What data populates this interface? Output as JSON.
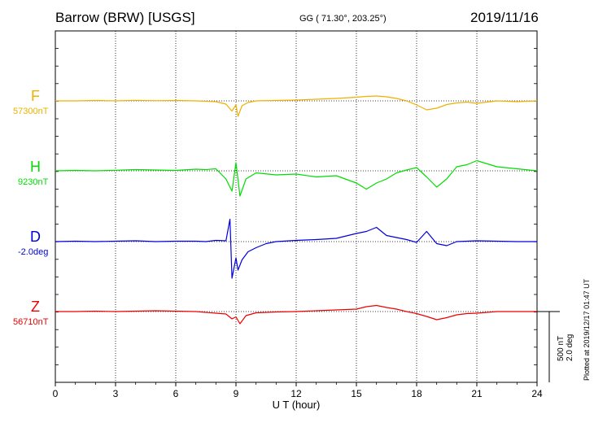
{
  "header": {
    "station": "Barrow (BRW)  [USGS]",
    "coords": "GG ( 71.30°, 203.25°)",
    "date": "2019/11/16"
  },
  "footnote": "Plotted at 2019/12/17 01:47 UT",
  "chart_data": {
    "type": "line",
    "xlabel": "U T (hour)",
    "xlim": [
      0,
      24
    ],
    "xticks": [
      "0",
      "3",
      "6",
      "9",
      "12",
      "15",
      "18",
      "21",
      "24"
    ],
    "scale_label": [
      "500 nT",
      "2.0 deg"
    ],
    "grid": true,
    "series": [
      {
        "name": "F",
        "baseline_label": "57300nT",
        "color": "#f0b000",
        "x": [
          0,
          1,
          2,
          3,
          4,
          5,
          6,
          7,
          7.5,
          8,
          8.5,
          8.8,
          9,
          9.1,
          9.3,
          9.6,
          10,
          11,
          12,
          13,
          14,
          15,
          15.5,
          16,
          16.5,
          17,
          17.5,
          18,
          18.5,
          19,
          19.5,
          20,
          20.5,
          21,
          22,
          23,
          24
        ],
        "values": [
          0,
          0,
          10,
          0,
          15,
          5,
          10,
          0,
          -10,
          -20,
          -80,
          -250,
          -100,
          -380,
          -120,
          -40,
          0,
          10,
          20,
          40,
          60,
          90,
          110,
          120,
          100,
          60,
          0,
          -100,
          -220,
          -180,
          -90,
          -50,
          -30,
          -60,
          0,
          -20,
          0
        ]
      },
      {
        "name": "H",
        "baseline_label": "9230nT",
        "color": "#00dd00",
        "x": [
          0,
          1,
          2,
          3,
          4,
          5,
          6,
          7,
          7.5,
          8,
          8.5,
          8.8,
          9,
          9.2,
          9.5,
          10,
          11,
          12,
          13,
          14,
          15,
          15.5,
          16,
          16.5,
          17,
          17.5,
          18,
          18.5,
          19,
          19.5,
          20,
          20.5,
          21,
          22,
          23,
          24
        ],
        "values": [
          0,
          10,
          0,
          15,
          30,
          20,
          10,
          40,
          30,
          50,
          -200,
          -500,
          200,
          -620,
          -200,
          -50,
          -100,
          -80,
          -150,
          -120,
          -300,
          -450,
          -300,
          -200,
          -50,
          20,
          80,
          -150,
          -400,
          -200,
          100,
          150,
          250,
          100,
          50,
          0
        ]
      },
      {
        "name": "D",
        "baseline_label": "-2.0deg",
        "color": "#0000dd",
        "x": [
          0,
          1,
          2,
          3,
          4,
          5,
          6,
          7,
          7.5,
          8,
          8.5,
          8.7,
          8.8,
          9,
          9.1,
          9.3,
          9.6,
          10,
          10.5,
          11,
          12,
          13,
          14,
          15,
          15.5,
          16,
          16.5,
          17,
          17.5,
          18,
          18.5,
          19,
          19.5,
          20,
          21,
          22,
          23,
          24
        ],
        "values": [
          0,
          10,
          0,
          10,
          20,
          0,
          10,
          10,
          0,
          30,
          20,
          550,
          -900,
          -400,
          -700,
          -450,
          -250,
          -150,
          -50,
          0,
          30,
          50,
          80,
          200,
          250,
          350,
          150,
          100,
          50,
          -20,
          250,
          -50,
          -100,
          0,
          20,
          10,
          0,
          0
        ]
      },
      {
        "name": "Z",
        "baseline_label": "56710nT",
        "color": "#ee0000",
        "x": [
          0,
          1,
          2,
          3,
          4,
          5,
          6,
          7,
          7.5,
          8,
          8.5,
          8.8,
          9,
          9.2,
          9.5,
          10,
          11,
          12,
          13,
          14,
          15,
          15.5,
          16,
          16.5,
          17,
          17.5,
          18,
          18.5,
          19,
          19.5,
          20,
          20.5,
          21,
          22,
          23,
          24
        ],
        "values": [
          0,
          0,
          10,
          0,
          10,
          20,
          10,
          0,
          -20,
          -40,
          -60,
          -180,
          -130,
          -300,
          -100,
          -30,
          -10,
          0,
          20,
          40,
          60,
          120,
          150,
          100,
          60,
          0,
          -50,
          -120,
          -200,
          -150,
          -80,
          -50,
          -40,
          0,
          0,
          0
        ]
      }
    ]
  }
}
